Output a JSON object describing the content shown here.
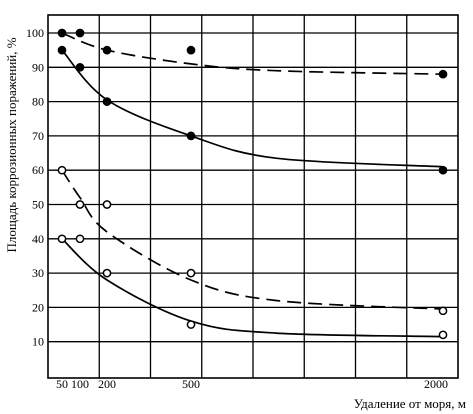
{
  "chart_data": {
    "type": "scatter",
    "title": "",
    "xlabel": "Удаление от моря, м",
    "ylabel": "Площадь коррозионных поражений, %",
    "x_tick_labels": [
      {
        "value": 50,
        "label": "50"
      },
      {
        "value": 100,
        "label": "100"
      },
      {
        "value": 200,
        "label": "200"
      },
      {
        "value": 500,
        "label": "500"
      },
      {
        "value": 2000,
        "label": "2000"
      }
    ],
    "y_ticks": [
      10,
      20,
      30,
      40,
      50,
      60,
      70,
      80,
      90,
      100
    ],
    "ylim": [
      0,
      105
    ],
    "grid": true,
    "series": [
      {
        "marker": "filled",
        "line": "dashed",
        "points": [
          [
            50,
            100
          ],
          [
            100,
            100
          ],
          [
            200,
            95
          ],
          [
            500,
            95
          ],
          [
            2000,
            88
          ]
        ],
        "curve": [
          [
            50,
            100
          ],
          [
            200,
            95
          ],
          [
            500,
            91
          ],
          [
            1000,
            89
          ],
          [
            2000,
            88
          ]
        ]
      },
      {
        "marker": "filled",
        "line": "solid",
        "points": [
          [
            50,
            95
          ],
          [
            100,
            90
          ],
          [
            200,
            80
          ],
          [
            500,
            70
          ],
          [
            2000,
            60
          ]
        ],
        "curve": [
          [
            50,
            95
          ],
          [
            200,
            80.5
          ],
          [
            500,
            70
          ],
          [
            1000,
            63.5
          ],
          [
            2000,
            61
          ]
        ]
      },
      {
        "marker": "open",
        "line": "dashed",
        "points": [
          [
            50,
            60
          ],
          [
            100,
            50
          ],
          [
            200,
            50
          ],
          [
            500,
            30
          ],
          [
            2000,
            19
          ]
        ],
        "curve": [
          [
            50,
            60
          ],
          [
            100,
            52
          ],
          [
            200,
            42
          ],
          [
            500,
            28
          ],
          [
            1000,
            22
          ],
          [
            2000,
            19.5
          ]
        ]
      },
      {
        "marker": "open",
        "line": "solid",
        "points": [
          [
            50,
            40
          ],
          [
            100,
            40
          ],
          [
            200,
            30
          ],
          [
            500,
            15
          ],
          [
            2000,
            12
          ]
        ],
        "curve": [
          [
            50,
            40
          ],
          [
            200,
            28
          ],
          [
            500,
            16
          ],
          [
            1000,
            12.5
          ],
          [
            2000,
            11.5
          ]
        ]
      }
    ]
  }
}
